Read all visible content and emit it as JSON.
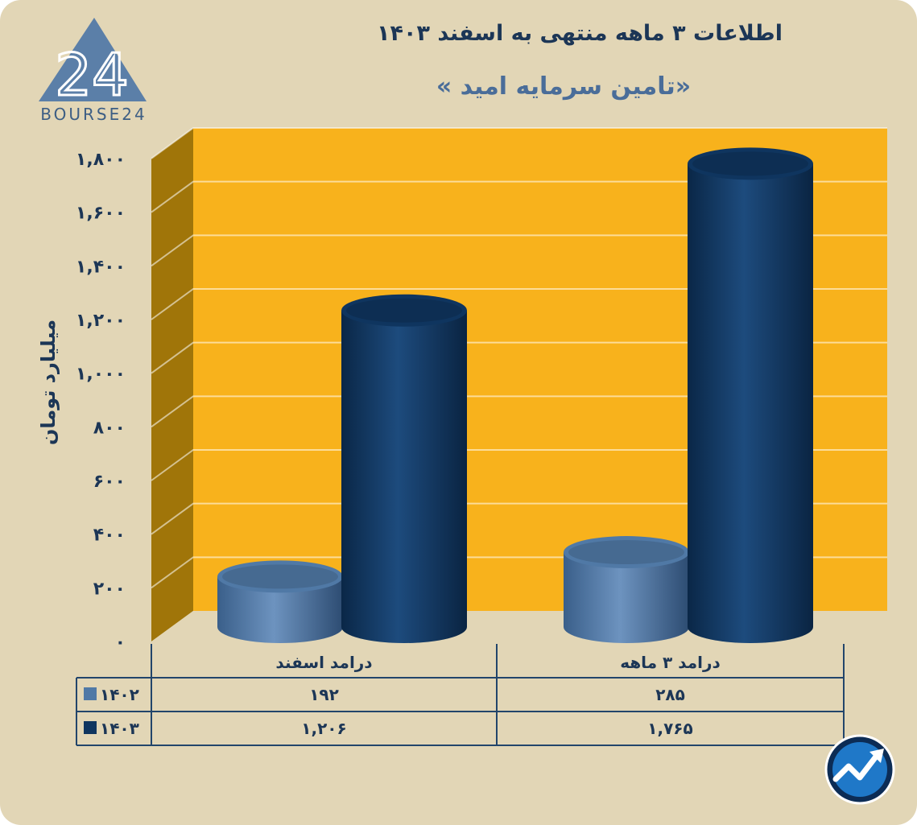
{
  "title": "اطلاعات ۳ ماهه منتهی به اسفند ۱۴۰۳",
  "subtitle": "«تامین سرمایه امید »",
  "logo_text": "BOURSE24",
  "logo_mark": "24",
  "colors": {
    "background": "#e2d6b6",
    "plot_back": "#f8b21c",
    "plot_side": "#a07509",
    "series_1402": "#5079a6",
    "series_1403": "#0f355f",
    "text": "#1c3656"
  },
  "chart_data": {
    "type": "bar",
    "categories": [
      "درامد اسفند",
      "درامد ۳ ماهه"
    ],
    "series": [
      {
        "name": "۱۴۰۲",
        "values": [
          192,
          285
        ],
        "display": [
          "۱۹۲",
          "۲۸۵"
        ]
      },
      {
        "name": "۱۴۰۳",
        "values": [
          1206,
          1765
        ],
        "display": [
          "۱,۲۰۶",
          "۱,۷۶۵"
        ]
      }
    ],
    "ylabel": "میلیارد تومان",
    "ylim": [
      0,
      1800
    ],
    "yticks": [
      0,
      200,
      400,
      600,
      800,
      1000,
      1200,
      1400,
      1600,
      1800
    ],
    "ytick_labels": [
      "۰",
      "۲۰۰",
      "۴۰۰",
      "۶۰۰",
      "۸۰۰",
      "۱,۰۰۰",
      "۱,۲۰۰",
      "۱,۴۰۰",
      "۱,۶۰۰",
      "۱,۸۰۰"
    ],
    "grid": true,
    "bar_shape": "cylinder-3d",
    "legend": "data-table-below"
  },
  "badge_icon": "trend-arrow-icon"
}
